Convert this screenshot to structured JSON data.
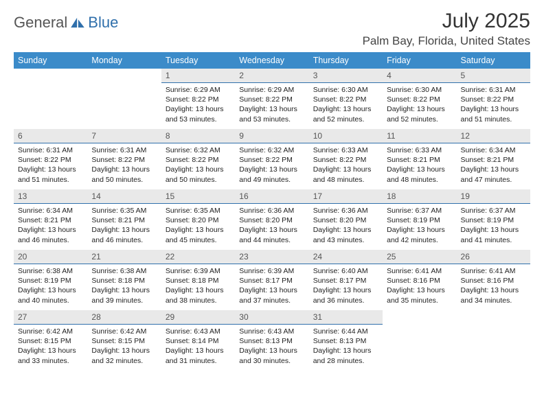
{
  "logo": {
    "text1": "General",
    "text2": "Blue"
  },
  "title": "July 2025",
  "location": "Palm Bay, Florida, United States",
  "colors": {
    "header_bg": "#3b8bc9",
    "header_text": "#ffffff",
    "daynum_bg": "#e9e9e9",
    "daynum_border": "#2f6fab",
    "logo_accent": "#2f6fab",
    "body_text": "#222222"
  },
  "weekdays": [
    "Sunday",
    "Monday",
    "Tuesday",
    "Wednesday",
    "Thursday",
    "Friday",
    "Saturday"
  ],
  "weeks": [
    [
      null,
      null,
      {
        "n": "1",
        "sunrise": "6:29 AM",
        "sunset": "8:22 PM",
        "daylight": "13 hours and 53 minutes."
      },
      {
        "n": "2",
        "sunrise": "6:29 AM",
        "sunset": "8:22 PM",
        "daylight": "13 hours and 53 minutes."
      },
      {
        "n": "3",
        "sunrise": "6:30 AM",
        "sunset": "8:22 PM",
        "daylight": "13 hours and 52 minutes."
      },
      {
        "n": "4",
        "sunrise": "6:30 AM",
        "sunset": "8:22 PM",
        "daylight": "13 hours and 52 minutes."
      },
      {
        "n": "5",
        "sunrise": "6:31 AM",
        "sunset": "8:22 PM",
        "daylight": "13 hours and 51 minutes."
      }
    ],
    [
      {
        "n": "6",
        "sunrise": "6:31 AM",
        "sunset": "8:22 PM",
        "daylight": "13 hours and 51 minutes."
      },
      {
        "n": "7",
        "sunrise": "6:31 AM",
        "sunset": "8:22 PM",
        "daylight": "13 hours and 50 minutes."
      },
      {
        "n": "8",
        "sunrise": "6:32 AM",
        "sunset": "8:22 PM",
        "daylight": "13 hours and 50 minutes."
      },
      {
        "n": "9",
        "sunrise": "6:32 AM",
        "sunset": "8:22 PM",
        "daylight": "13 hours and 49 minutes."
      },
      {
        "n": "10",
        "sunrise": "6:33 AM",
        "sunset": "8:22 PM",
        "daylight": "13 hours and 48 minutes."
      },
      {
        "n": "11",
        "sunrise": "6:33 AM",
        "sunset": "8:21 PM",
        "daylight": "13 hours and 48 minutes."
      },
      {
        "n": "12",
        "sunrise": "6:34 AM",
        "sunset": "8:21 PM",
        "daylight": "13 hours and 47 minutes."
      }
    ],
    [
      {
        "n": "13",
        "sunrise": "6:34 AM",
        "sunset": "8:21 PM",
        "daylight": "13 hours and 46 minutes."
      },
      {
        "n": "14",
        "sunrise": "6:35 AM",
        "sunset": "8:21 PM",
        "daylight": "13 hours and 46 minutes."
      },
      {
        "n": "15",
        "sunrise": "6:35 AM",
        "sunset": "8:20 PM",
        "daylight": "13 hours and 45 minutes."
      },
      {
        "n": "16",
        "sunrise": "6:36 AM",
        "sunset": "8:20 PM",
        "daylight": "13 hours and 44 minutes."
      },
      {
        "n": "17",
        "sunrise": "6:36 AM",
        "sunset": "8:20 PM",
        "daylight": "13 hours and 43 minutes."
      },
      {
        "n": "18",
        "sunrise": "6:37 AM",
        "sunset": "8:19 PM",
        "daylight": "13 hours and 42 minutes."
      },
      {
        "n": "19",
        "sunrise": "6:37 AM",
        "sunset": "8:19 PM",
        "daylight": "13 hours and 41 minutes."
      }
    ],
    [
      {
        "n": "20",
        "sunrise": "6:38 AM",
        "sunset": "8:19 PM",
        "daylight": "13 hours and 40 minutes."
      },
      {
        "n": "21",
        "sunrise": "6:38 AM",
        "sunset": "8:18 PM",
        "daylight": "13 hours and 39 minutes."
      },
      {
        "n": "22",
        "sunrise": "6:39 AM",
        "sunset": "8:18 PM",
        "daylight": "13 hours and 38 minutes."
      },
      {
        "n": "23",
        "sunrise": "6:39 AM",
        "sunset": "8:17 PM",
        "daylight": "13 hours and 37 minutes."
      },
      {
        "n": "24",
        "sunrise": "6:40 AM",
        "sunset": "8:17 PM",
        "daylight": "13 hours and 36 minutes."
      },
      {
        "n": "25",
        "sunrise": "6:41 AM",
        "sunset": "8:16 PM",
        "daylight": "13 hours and 35 minutes."
      },
      {
        "n": "26",
        "sunrise": "6:41 AM",
        "sunset": "8:16 PM",
        "daylight": "13 hours and 34 minutes."
      }
    ],
    [
      {
        "n": "27",
        "sunrise": "6:42 AM",
        "sunset": "8:15 PM",
        "daylight": "13 hours and 33 minutes."
      },
      {
        "n": "28",
        "sunrise": "6:42 AM",
        "sunset": "8:15 PM",
        "daylight": "13 hours and 32 minutes."
      },
      {
        "n": "29",
        "sunrise": "6:43 AM",
        "sunset": "8:14 PM",
        "daylight": "13 hours and 31 minutes."
      },
      {
        "n": "30",
        "sunrise": "6:43 AM",
        "sunset": "8:13 PM",
        "daylight": "13 hours and 30 minutes."
      },
      {
        "n": "31",
        "sunrise": "6:44 AM",
        "sunset": "8:13 PM",
        "daylight": "13 hours and 28 minutes."
      },
      null,
      null
    ]
  ],
  "labels": {
    "sunrise": "Sunrise:",
    "sunset": "Sunset:",
    "daylight": "Daylight:"
  }
}
